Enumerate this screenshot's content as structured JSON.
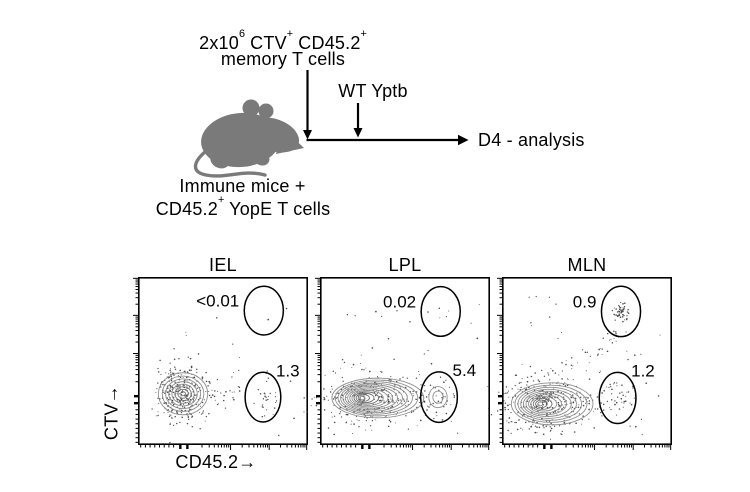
{
  "figure_type": "flow-cytometry-experiment-figure",
  "colors": {
    "frame": "#000000",
    "gate": "#000000",
    "contour": "#8f8f8f",
    "dots": "#383838"
  },
  "schematic": {
    "transfer_label_line1": "2x10^6^ CTV^+^ CD45.2^+^",
    "transfer_label_line2": "memory T cells",
    "infection_label": "WT Yptb",
    "endpoint_label": "D4 - analysis",
    "host_label_line1": "Immune mice +",
    "host_label_line2": "CD45.2^+^ YopE T cells",
    "mouse_icon_color": "#7a7a7a",
    "arrow_color": "#000000"
  },
  "axes": {
    "x_label": "CD45.2→",
    "y_label": "CTV→"
  },
  "chart_data": [
    {
      "type": "scatter",
      "subtype": "flow-cytometry-contour",
      "title": "IEL",
      "xlabel": "CD45.2",
      "ylabel": "CTV",
      "xscale": "biexponential",
      "yscale": "biexponential",
      "seed": 7,
      "gates": [
        {
          "name": "gate-top-ctv-high",
          "label": "<0.01",
          "cx": 0.74,
          "cy": 0.2,
          "rx": 0.115,
          "ry": 0.145,
          "label_pos": "left",
          "dot_count": 0,
          "dot_spread": 0.4,
          "inner_rings": 0
        },
        {
          "name": "gate-bottom-cd452-pos",
          "label": "1.3",
          "cx": 0.735,
          "cy": 0.715,
          "rx": 0.105,
          "ry": 0.148,
          "label_pos": "topright",
          "dot_count": 32,
          "dot_spread": 0.5,
          "inner_rings": 0
        }
      ],
      "population": {
        "core_cx": 0.265,
        "cy": 0.695,
        "outer_rx": 0.145,
        "outer_ry": 0.125,
        "tail_dx": 0,
        "rings": 8,
        "dots": 300
      },
      "spray": {
        "x1": 0.36,
        "x2": 0.6,
        "y": 0.695,
        "count": 24
      },
      "trail": null,
      "noise": 18
    },
    {
      "type": "scatter",
      "subtype": "flow-cytometry-contour",
      "title": "LPL",
      "xlabel": "CD45.2",
      "ylabel": "CTV",
      "xscale": "biexponential",
      "yscale": "biexponential",
      "seed": 11,
      "gates": [
        {
          "name": "gate-top-ctv-high",
          "label": "0.02",
          "cx": 0.71,
          "cy": 0.205,
          "rx": 0.115,
          "ry": 0.148,
          "label_pos": "left",
          "dot_count": 2,
          "dot_spread": 0.3,
          "inner_rings": 0
        },
        {
          "name": "gate-bottom-cd452-pos",
          "label": "5.4",
          "cx": 0.7,
          "cy": 0.715,
          "rx": 0.108,
          "ry": 0.15,
          "label_pos": "topright",
          "dot_count": 42,
          "dot_spread": 0.6,
          "inner_rings": 2
        }
      ],
      "population": {
        "core_cx": 0.25,
        "cy": 0.72,
        "outer_rx": 0.27,
        "outer_ry": 0.118,
        "tail_dx": 0.09,
        "rings": 13,
        "dots": 290
      },
      "spray": {
        "x1": 0.52,
        "x2": 0.62,
        "y": 0.72,
        "count": 14
      },
      "trail": null,
      "noise": 26
    },
    {
      "type": "scatter",
      "subtype": "flow-cytometry-contour",
      "title": "MLN",
      "xlabel": "CD45.2",
      "ylabel": "CTV",
      "xscale": "biexponential",
      "yscale": "biexponential",
      "seed": 23,
      "gates": [
        {
          "name": "gate-top-ctv-high",
          "label": "0.9",
          "cx": 0.7,
          "cy": 0.205,
          "rx": 0.115,
          "ry": 0.15,
          "label_pos": "left",
          "dot_count": 55,
          "dot_spread": 0.2,
          "inner_rings": 0
        },
        {
          "name": "gate-bottom-cd452-pos",
          "label": "1.2",
          "cx": 0.68,
          "cy": 0.72,
          "rx": 0.108,
          "ry": 0.152,
          "label_pos": "topright",
          "dot_count": 50,
          "dot_spread": 0.55,
          "inner_rings": 0
        }
      ],
      "population": {
        "core_cx": 0.225,
        "cy": 0.755,
        "outer_rx": 0.24,
        "outer_ry": 0.125,
        "tail_dx": 0.07,
        "rings": 11,
        "dots": 320
      },
      "spray": {
        "x1": 0.42,
        "x2": 0.6,
        "y": 0.75,
        "count": 16
      },
      "trail": {
        "x1": 0.33,
        "y1": 0.64,
        "x2": 0.7,
        "y2": 0.32,
        "dots": 34
      },
      "noise": 30
    }
  ]
}
